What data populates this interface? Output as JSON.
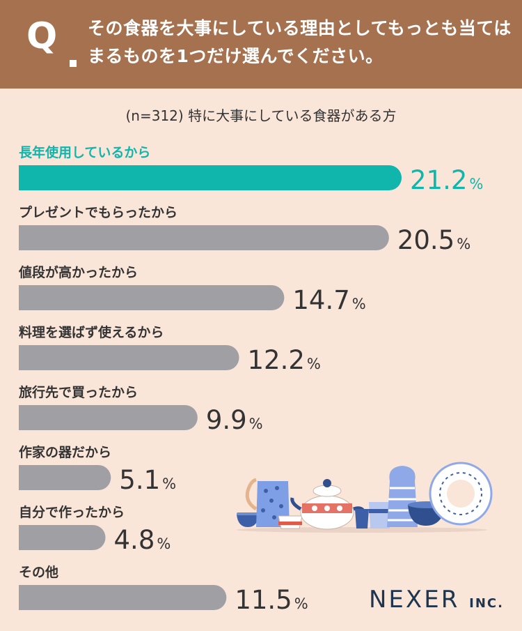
{
  "header": {
    "q_mark": "Q",
    "question": "その食器を大事にしている理由としてもっとも当てはまるものを1つだけ選んでください。"
  },
  "subtitle": "(n=312) 特に大事にしている食器がある方",
  "logo": {
    "brand": "NEXER",
    "suffix": "INC."
  },
  "colors": {
    "highlight": "#10b5ac",
    "bar": "#a0a0a4",
    "background": "#fae5d9",
    "header": "#a5714f",
    "text": "#333333"
  },
  "chart_data": {
    "type": "bar",
    "orientation": "horizontal",
    "unit": "%",
    "categories": [
      "長年使用しているから",
      "プレゼントでもらったから",
      "値段が高かったから",
      "料理を選ばず使えるから",
      "旅行先で買ったから",
      "作家の器だから",
      "自分で作ったから",
      "その他"
    ],
    "values": [
      21.2,
      20.5,
      14.7,
      12.2,
      9.9,
      5.1,
      4.8,
      11.5
    ],
    "highlight_index": 0
  }
}
